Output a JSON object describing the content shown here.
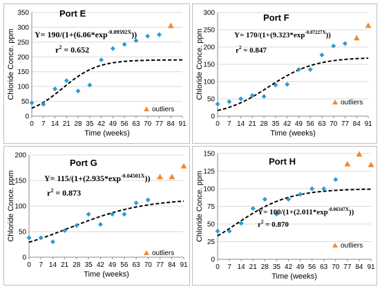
{
  "chart_data": [
    {
      "type": "scatter",
      "title": "Port E",
      "xlabel": "Time (weeks)",
      "ylabel": "Chloride Conce.  ppm",
      "xlim": [
        0,
        91
      ],
      "ylim": [
        0,
        350
      ],
      "xticks": [
        0,
        7,
        14,
        21,
        28,
        35,
        42,
        49,
        56,
        63,
        70,
        77,
        84,
        91
      ],
      "yticks": [
        0,
        50,
        100,
        150,
        200,
        250,
        300,
        350
      ],
      "grid": "horizontal",
      "equation": {
        "prefix": "Y= 190/(1+(6.06*exp",
        "exponent": "-0.09592X",
        "suffix": "))"
      },
      "r2": {
        "prefix": "r",
        "sup": "2",
        "value": " = 0.652"
      },
      "legend": {
        "label": "outliers",
        "position": "bottom-right"
      },
      "fit": {
        "K": 190,
        "a": 6.06,
        "b": 0.09592
      },
      "series": [
        {
          "points": [
            [
              0,
              45
            ],
            [
              7,
              40
            ],
            [
              14,
              92
            ],
            [
              21,
              120
            ],
            [
              28,
              85
            ],
            [
              35,
              105
            ],
            [
              42,
              190
            ],
            [
              49,
              228
            ],
            [
              56,
              242
            ],
            [
              63,
              255
            ],
            [
              70,
              270
            ],
            [
              77,
              275
            ]
          ]
        },
        {
          "name": "outliers",
          "points": [
            [
              84,
              305
            ]
          ]
        }
      ]
    },
    {
      "type": "scatter",
      "title": "Port F",
      "xlabel": "Time (weeks)",
      "ylabel": "Chloride Conce.  ppm",
      "xlim": [
        0,
        91
      ],
      "ylim": [
        0,
        300
      ],
      "xticks": [
        0,
        7,
        14,
        21,
        28,
        35,
        42,
        49,
        56,
        63,
        70,
        77,
        84,
        91
      ],
      "yticks": [
        0,
        50,
        100,
        150,
        200,
        250,
        300
      ],
      "grid": "horizontal",
      "equation": {
        "prefix": "Y= 170/(1+(9.323*exp",
        "exponent": "-0.07227X",
        "suffix": "))"
      },
      "r2": {
        "prefix": "r",
        "sup": "2",
        "value": " = 0.847"
      },
      "legend": {
        "label": "outliers",
        "position": "bottom-right"
      },
      "fit": {
        "K": 170,
        "a": 9.323,
        "b": 0.07227
      },
      "series": [
        {
          "points": [
            [
              0,
              35
            ],
            [
              7,
              42
            ],
            [
              14,
              50
            ],
            [
              21,
              60
            ],
            [
              28,
              57
            ],
            [
              35,
              90
            ],
            [
              42,
              92
            ],
            [
              49,
              135
            ],
            [
              56,
              135
            ],
            [
              63,
              177
            ],
            [
              70,
              203
            ],
            [
              77,
              210
            ]
          ]
        },
        {
          "name": "outliers",
          "points": [
            [
              84,
              226
            ],
            [
              91,
              262
            ]
          ]
        }
      ]
    },
    {
      "type": "scatter",
      "title": "Port G",
      "xlabel": "Time (weeks)",
      "ylabel": "Chloride Conce.  ppm",
      "xlim": [
        0,
        91
      ],
      "ylim": [
        0,
        200
      ],
      "xticks": [
        0,
        7,
        14,
        21,
        28,
        35,
        42,
        49,
        56,
        63,
        70,
        77,
        84,
        91
      ],
      "yticks": [
        0,
        50,
        100,
        150,
        200
      ],
      "grid": "horizontal",
      "equation": {
        "prefix": "Y= 115/(1+(2.935*exp",
        "exponent": "-0.04501X",
        "suffix": "))"
      },
      "r2": {
        "prefix": "r",
        "sup": "2",
        "value": " = 0.873"
      },
      "legend": {
        "label": "outliers",
        "position": "bottom-right"
      },
      "fit": {
        "K": 115,
        "a": 2.935,
        "b": 0.04501
      },
      "series": [
        {
          "points": [
            [
              0,
              38
            ],
            [
              7,
              38
            ],
            [
              14,
              30
            ],
            [
              21,
              52
            ],
            [
              28,
              62
            ],
            [
              35,
              84
            ],
            [
              42,
              64
            ],
            [
              49,
              84
            ],
            [
              56,
              84
            ],
            [
              63,
              106
            ],
            [
              70,
              112
            ]
          ]
        },
        {
          "name": "outliers",
          "points": [
            [
              77,
              157
            ],
            [
              84,
              157
            ],
            [
              91,
              178
            ]
          ]
        }
      ]
    },
    {
      "type": "scatter",
      "title": "Port H",
      "xlabel": "Time (weeks)",
      "ylabel": "Chloride Conce.  ppm",
      "xlim": [
        0,
        91
      ],
      "ylim": [
        0,
        150
      ],
      "xticks": [
        0,
        7,
        14,
        21,
        28,
        35,
        42,
        49,
        56,
        63,
        70,
        77,
        84,
        91
      ],
      "yticks": [
        0,
        25,
        50,
        75,
        100,
        125,
        150
      ],
      "grid": "horizontal",
      "equation": {
        "prefix": "Y= 100/(1+(2.011*exp",
        "exponent": "-0.06347X",
        "suffix": "))"
      },
      "r2": {
        "prefix": "r",
        "sup": "2",
        "value": " = 0.870"
      },
      "legend": {
        "label": "outliers",
        "position": "bottom-right"
      },
      "fit": {
        "K": 100,
        "a": 2.011,
        "b": 0.06347
      },
      "series": [
        {
          "points": [
            [
              0,
              40
            ],
            [
              7,
              40
            ],
            [
              14,
              51
            ],
            [
              21,
              72
            ],
            [
              28,
              85
            ],
            [
              35,
              64
            ],
            [
              42,
              85
            ],
            [
              49,
              92
            ],
            [
              56,
              100
            ],
            [
              63,
              100
            ],
            [
              70,
              113
            ]
          ]
        },
        {
          "name": "outliers",
          "points": [
            [
              77,
              135
            ],
            [
              84,
              149
            ],
            [
              91,
              134
            ]
          ]
        }
      ]
    }
  ],
  "colors": {
    "points": "#2e9bd6",
    "outliers": "#f28a2e",
    "fit": "#000000",
    "grid": "#d9d9d9",
    "axis": "#888888"
  }
}
